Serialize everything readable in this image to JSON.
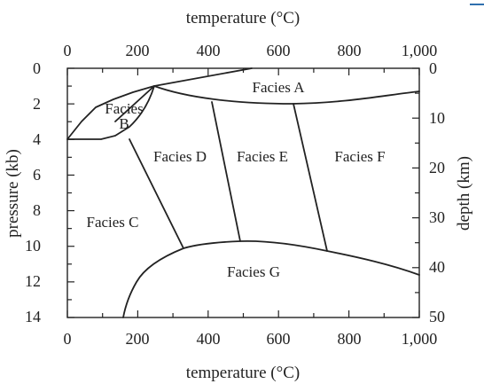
{
  "diagram": {
    "title_top": "temperature (°C)",
    "title_bottom": "temperature (°C)",
    "title_left": "pressure (kb)",
    "title_right": "depth (km)",
    "temperature_ticks": [
      "0",
      "200",
      "400",
      "600",
      "800",
      "1,000"
    ],
    "pressure_ticks": [
      "0",
      "2",
      "4",
      "6",
      "8",
      "10",
      "12",
      "14"
    ],
    "depth_ticks": [
      "0",
      "10",
      "20",
      "30",
      "40",
      "50"
    ],
    "facies": {
      "a": "Facies A",
      "b_line1": "Facies",
      "b_line2": "B",
      "c": "Facies C",
      "d": "Facies D",
      "e": "Facies E",
      "f": "Facies F",
      "g": "Facies G"
    },
    "accent_color": "#2f6fae"
  }
}
